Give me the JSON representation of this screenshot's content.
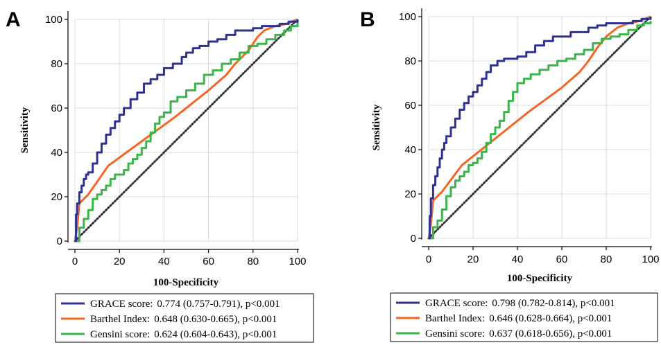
{
  "chart_data": [
    {
      "type": "line",
      "panel_label": "A",
      "xlabel": "100-Specificity",
      "ylabel": "Sensitivity",
      "xlim": [
        0,
        100
      ],
      "ylim": [
        0,
        100
      ],
      "xticks": [
        "0",
        "20",
        "40",
        "60",
        "80",
        "100"
      ],
      "yticks": [
        "0",
        "20",
        "40",
        "60",
        "80",
        "100"
      ],
      "grid": true,
      "reference_line": {
        "x": [
          0,
          100
        ],
        "y": [
          0,
          100
        ],
        "style": "dotted"
      },
      "series": [
        {
          "name": "GRACE score",
          "color": "#2e3192",
          "step": true,
          "x": [
            0,
            0.5,
            1,
            2,
            3,
            4,
            5,
            6,
            8,
            10,
            12,
            14,
            16,
            18,
            20,
            22,
            25,
            28,
            31,
            34,
            37,
            40,
            44,
            48,
            50,
            53,
            56,
            60,
            64,
            68,
            72,
            76,
            80,
            84,
            88,
            92,
            96,
            100
          ],
          "y": [
            0,
            12,
            17,
            22,
            25,
            28,
            30,
            31,
            35,
            40,
            44,
            48,
            51,
            54,
            57,
            60,
            64,
            67,
            71,
            73,
            75,
            78,
            80,
            83,
            85,
            87,
            88,
            90,
            91,
            93,
            95,
            95,
            96,
            97,
            97,
            98,
            99,
            100
          ]
        },
        {
          "name": "Barthel Index",
          "color": "#f26522",
          "x": [
            0,
            1,
            2,
            6,
            15,
            30,
            45,
            60,
            68,
            72,
            78,
            82,
            85,
            90,
            95,
            100
          ],
          "y": [
            0,
            6,
            17,
            21,
            34,
            45,
            56,
            68,
            75,
            80,
            86,
            92,
            95,
            97,
            98,
            100
          ],
          "label": "0.648 (0.630-0.665), p<0.001"
        },
        {
          "name": "Gensini score",
          "color": "#39b54a",
          "step": true,
          "x": [
            0,
            2,
            4,
            6,
            8,
            10,
            12,
            14,
            16,
            18,
            20,
            22,
            24,
            26,
            28,
            30,
            32,
            34,
            36,
            38,
            40,
            43,
            46,
            50,
            54,
            58,
            62,
            66,
            70,
            74,
            78,
            82,
            86,
            90,
            94,
            97,
            100
          ],
          "y": [
            0,
            6,
            10,
            14,
            19,
            21,
            23,
            25,
            28,
            30,
            30,
            32,
            35,
            37,
            39,
            42,
            45,
            49,
            53,
            56,
            58,
            63,
            65,
            68,
            71,
            75,
            77,
            80,
            82,
            85,
            88,
            89,
            91,
            93,
            95,
            97,
            99
          ]
        }
      ],
      "legend": [
        {
          "name": "GRACE score:",
          "stat": "0.774 (0.757-0.791), p<0.001",
          "color": "#2e3192"
        },
        {
          "name": "Barthel Index:",
          "stat": "0.648 (0.630-0.665), p<0.001",
          "color": "#f26522"
        },
        {
          "name": "Gensini score:",
          "stat": "0.624 (0.604-0.643), p<0.001",
          "color": "#39b54a"
        }
      ]
    },
    {
      "type": "line",
      "panel_label": "B",
      "xlabel": "100-Specificity",
      "ylabel": "Sensitivity",
      "xlim": [
        0,
        100
      ],
      "ylim": [
        0,
        100
      ],
      "xticks": [
        "0",
        "20",
        "40",
        "60",
        "80",
        "100"
      ],
      "yticks": [
        "0",
        "20",
        "40",
        "60",
        "80",
        "100"
      ],
      "grid": true,
      "reference_line": {
        "x": [
          0,
          100
        ],
        "y": [
          0,
          100
        ],
        "style": "dotted"
      },
      "series": [
        {
          "name": "GRACE score",
          "color": "#2e3192",
          "step": true,
          "x": [
            0,
            0.5,
            1,
            2,
            3,
            4,
            5,
            6,
            7,
            8,
            10,
            12,
            14,
            16,
            18,
            20,
            22,
            24,
            26,
            28,
            31,
            34,
            37,
            40,
            44,
            48,
            52,
            56,
            60,
            64,
            68,
            72,
            76,
            80,
            86,
            92,
            96,
            100
          ],
          "y": [
            0,
            10,
            18,
            24,
            28,
            32,
            36,
            40,
            43,
            46,
            50,
            54,
            58,
            61,
            64,
            66,
            69,
            72,
            75,
            78,
            80,
            81,
            81,
            82,
            84,
            87,
            89,
            91,
            91,
            93,
            93,
            95,
            96,
            97,
            97,
            98,
            99,
            100
          ]
        },
        {
          "name": "Barthel Index",
          "color": "#f26522",
          "x": [
            0,
            1,
            2,
            6,
            15,
            30,
            45,
            60,
            68,
            72,
            76,
            80,
            85,
            90,
            95,
            100
          ],
          "y": [
            0,
            6,
            17,
            21,
            33,
            45,
            57,
            68,
            75,
            80,
            86,
            91,
            95,
            97,
            98,
            100
          ]
        },
        {
          "name": "Gensini score",
          "color": "#39b54a",
          "step": true,
          "x": [
            0,
            2,
            4,
            6,
            8,
            10,
            12,
            14,
            16,
            18,
            20,
            22,
            24,
            26,
            28,
            30,
            32,
            34,
            36,
            38,
            40,
            43,
            46,
            50,
            54,
            58,
            62,
            66,
            70,
            74,
            78,
            82,
            86,
            90,
            94,
            97,
            100
          ],
          "y": [
            0,
            5,
            8,
            13,
            19,
            23,
            26,
            28,
            30,
            33,
            34,
            36,
            39,
            43,
            47,
            50,
            53,
            57,
            62,
            66,
            70,
            72,
            74,
            76,
            78,
            80,
            81,
            83,
            85,
            88,
            90,
            91,
            92,
            94,
            96,
            97,
            98
          ]
        }
      ],
      "legend": [
        {
          "name": "GRACE score:",
          "stat": "0.798 (0.782-0.814), p<0.001",
          "color": "#2e3192"
        },
        {
          "name": "Barthel Index:",
          "stat": "0.646 (0.628-0.664), p<0.001",
          "color": "#f26522"
        },
        {
          "name": "Gensini score:",
          "stat": "0.637 (0.618-0.656), p<0.001",
          "color": "#39b54a"
        }
      ]
    }
  ]
}
